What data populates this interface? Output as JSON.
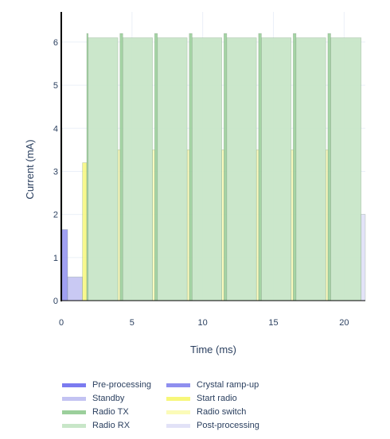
{
  "chart_data": {
    "type": "area",
    "title": "",
    "xlabel": "Time (ms)",
    "ylabel": "Current (mA)",
    "xlim": [
      0,
      21.5
    ],
    "ylim": [
      0,
      6.7
    ],
    "xticks": [
      0,
      5,
      10,
      15,
      20
    ],
    "yticks": [
      0,
      1,
      2,
      3,
      4,
      5,
      6
    ],
    "grid": true,
    "legend_position": "bottom",
    "series": [
      {
        "name": "Pre-processing",
        "color": "#7b7bf0",
        "opacity": 0.9,
        "segments": [
          {
            "x0": 0,
            "x1": 0.05,
            "y": 4.0
          }
        ]
      },
      {
        "name": "Crystal ramp-up",
        "color": "#8f8fef",
        "opacity": 0.85,
        "segments": [
          {
            "x0": 0.05,
            "x1": 0.45,
            "y": 1.65
          }
        ]
      },
      {
        "name": "Standby",
        "color": "#c3c3f2",
        "opacity": 0.9,
        "segments": [
          {
            "x0": 0.45,
            "x1": 1.5,
            "y": 0.55
          }
        ]
      },
      {
        "name": "Start radio",
        "color": "#f7f77a",
        "opacity": 0.85,
        "segments": [
          {
            "x0": 1.5,
            "x1": 1.8,
            "y": 3.2
          }
        ]
      },
      {
        "name": "Radio TX",
        "color": "#9bcf9b",
        "opacity": 0.9,
        "segments": [
          {
            "x0": 1.8,
            "x1": 1.9,
            "y": 6.2
          },
          {
            "x0": 4.15,
            "x1": 4.35,
            "y": 6.2
          },
          {
            "x0": 6.6,
            "x1": 6.8,
            "y": 6.2
          },
          {
            "x0": 9.05,
            "x1": 9.25,
            "y": 6.2
          },
          {
            "x0": 11.5,
            "x1": 11.7,
            "y": 6.2
          },
          {
            "x0": 13.95,
            "x1": 14.15,
            "y": 6.2
          },
          {
            "x0": 16.4,
            "x1": 16.6,
            "y": 6.2
          },
          {
            "x0": 18.85,
            "x1": 19.05,
            "y": 6.2
          }
        ]
      },
      {
        "name": "Radio switch",
        "color": "#fbfbb8",
        "opacity": 0.9,
        "segments": [
          {
            "x0": 4.0,
            "x1": 4.15,
            "y": 3.5
          },
          {
            "x0": 6.45,
            "x1": 6.6,
            "y": 3.5
          },
          {
            "x0": 8.9,
            "x1": 9.05,
            "y": 3.5
          },
          {
            "x0": 11.35,
            "x1": 11.5,
            "y": 3.5
          },
          {
            "x0": 13.8,
            "x1": 13.95,
            "y": 3.5
          },
          {
            "x0": 16.25,
            "x1": 16.4,
            "y": 3.5
          },
          {
            "x0": 18.7,
            "x1": 18.85,
            "y": 3.5
          }
        ]
      },
      {
        "name": "Radio RX",
        "color": "#c8e6c8",
        "opacity": 0.95,
        "segments": [
          {
            "x0": 1.9,
            "x1": 4.0,
            "y": 6.1
          },
          {
            "x0": 4.35,
            "x1": 6.45,
            "y": 6.1
          },
          {
            "x0": 6.8,
            "x1": 8.9,
            "y": 6.1
          },
          {
            "x0": 9.25,
            "x1": 11.35,
            "y": 6.1
          },
          {
            "x0": 11.7,
            "x1": 13.8,
            "y": 6.1
          },
          {
            "x0": 14.15,
            "x1": 16.25,
            "y": 6.1
          },
          {
            "x0": 16.6,
            "x1": 18.7,
            "y": 6.1
          },
          {
            "x0": 19.05,
            "x1": 21.2,
            "y": 6.1
          }
        ]
      },
      {
        "name": "Post-processing",
        "color": "#e2e2f7",
        "opacity": 0.95,
        "segments": [
          {
            "x0": 21.2,
            "x1": 21.5,
            "y": 2.0
          }
        ]
      }
    ],
    "legend": [
      "Pre-processing",
      "Crystal ramp-up",
      "Standby",
      "Start radio",
      "Radio TX",
      "Radio switch",
      "Radio RX",
      "Post-processing"
    ]
  }
}
